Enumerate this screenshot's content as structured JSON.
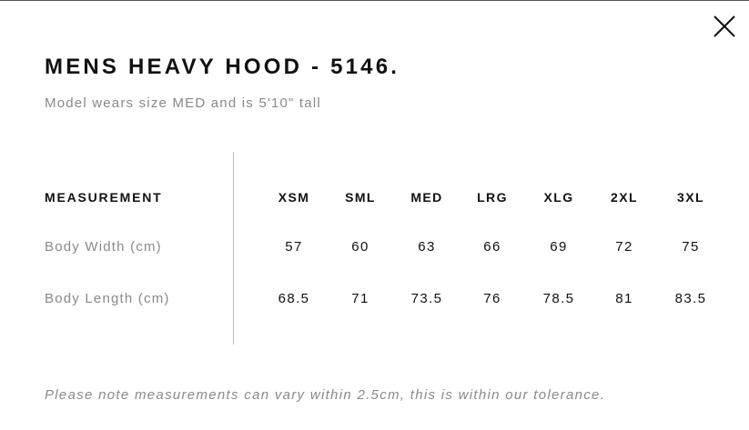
{
  "modal": {
    "title": "MENS HEAVY HOOD - 5146.",
    "subtitle": "Model wears size MED and is 5'10\" tall",
    "close_icon": "close-icon",
    "note": "Please note measurements can vary within 2.5cm, this is within our tolerance."
  },
  "table": {
    "header_label": "MEASUREMENT",
    "sizes": [
      "XSM",
      "SML",
      "MED",
      "LRG",
      "XLG",
      "2XL",
      "3XL"
    ],
    "rows": [
      {
        "label": "Body Width (cm)",
        "values": [
          "57",
          "60",
          "63",
          "66",
          "69",
          "72",
          "75"
        ]
      },
      {
        "label": "Body Length (cm)",
        "values": [
          "68.5",
          "71",
          "73.5",
          "76",
          "78.5",
          "81",
          "83.5"
        ]
      }
    ]
  }
}
